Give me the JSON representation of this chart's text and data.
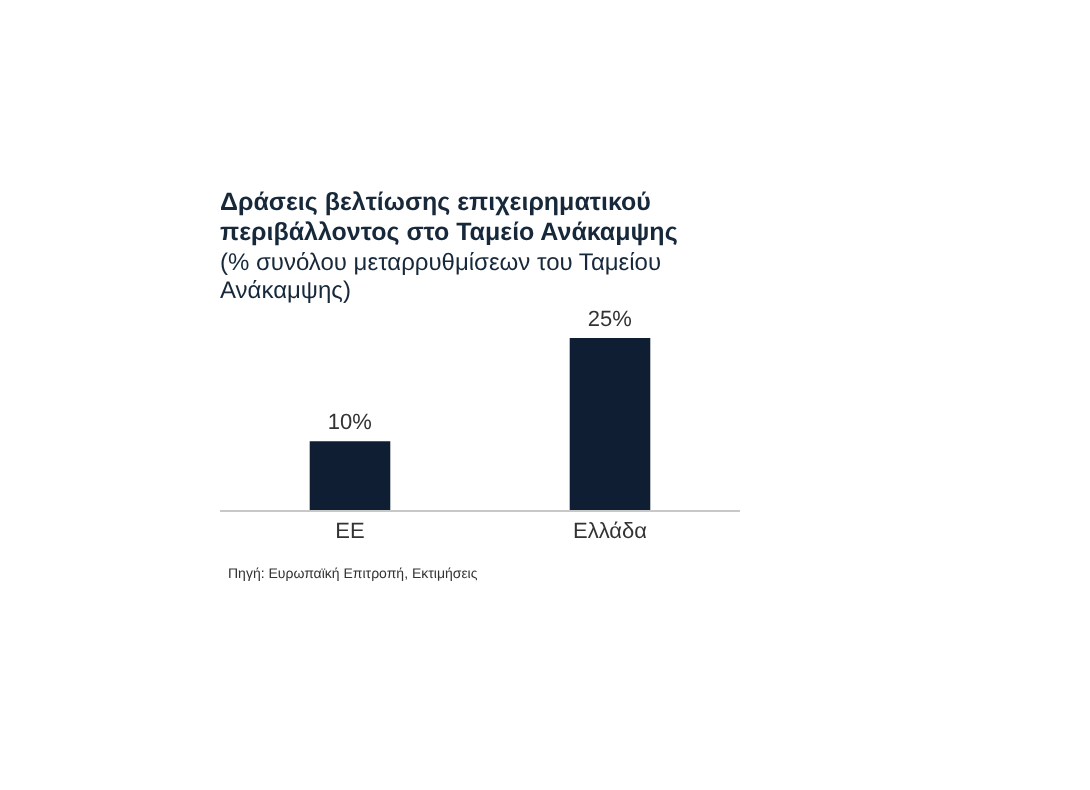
{
  "chart_data": {
    "type": "bar",
    "title": "Δράσεις βελτίωσης επιχειρηματικού περιβάλλοντος στο Ταμείο Ανάκαμψης",
    "subtitle": "(% συνόλου μεταρρυθμίσεων του Ταμείου Ανάκαμψης)",
    "categories": [
      "ΕΕ",
      "Ελλάδα"
    ],
    "values": [
      10,
      25
    ],
    "value_labels": [
      "10%",
      "25%"
    ],
    "color": "#0f1e33",
    "annotations": [
      "Πηγή: Ευρωπαϊκή Επιτροπή, Εκτιμήσεις"
    ]
  }
}
